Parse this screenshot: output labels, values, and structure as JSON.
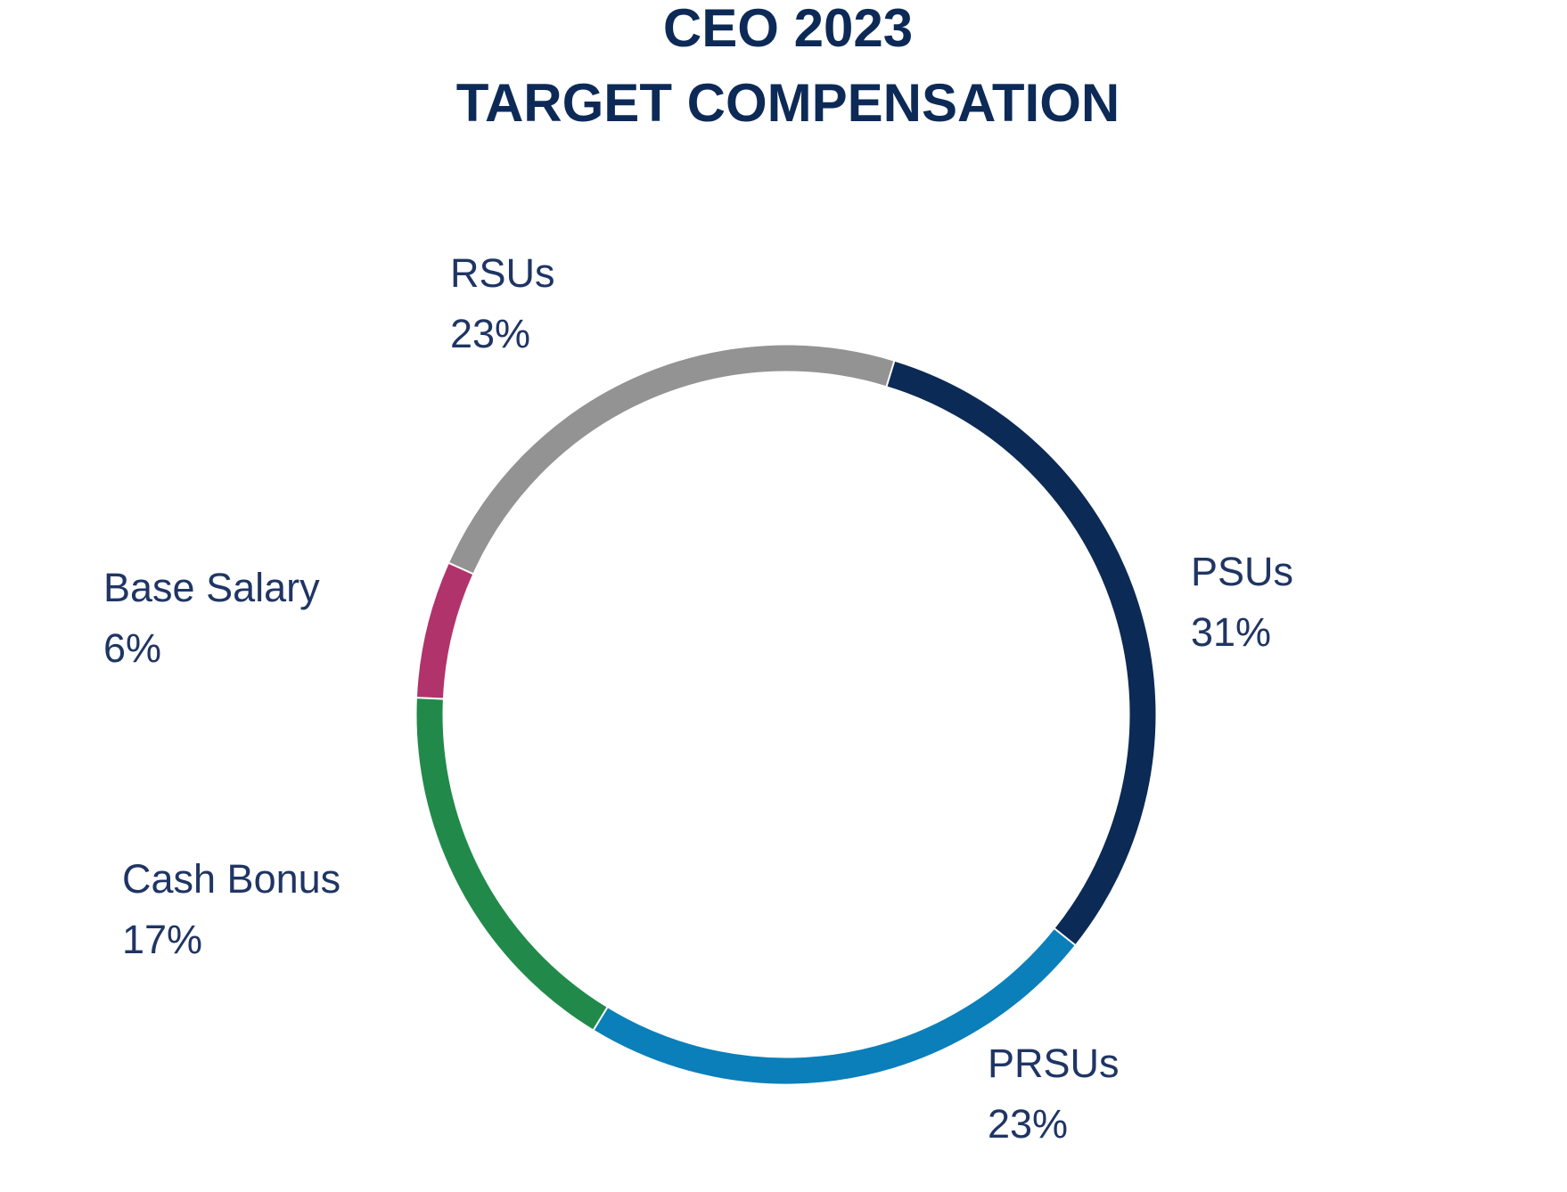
{
  "chart_data": {
    "type": "donut",
    "title": [
      "CEO 2023",
      "TARGET COMPENSATION"
    ],
    "categories": [
      "PSUs",
      "PRSUs",
      "Cash Bonus",
      "Base Salary",
      "RSUs"
    ],
    "values": [
      31,
      23,
      17,
      6,
      23
    ],
    "value_labels": [
      "31%",
      "23%",
      "17%",
      "6%",
      "23%"
    ],
    "colors": [
      "#0b2a55",
      "#0a7fba",
      "#218a4a",
      "#b1336c",
      "#939393"
    ]
  }
}
